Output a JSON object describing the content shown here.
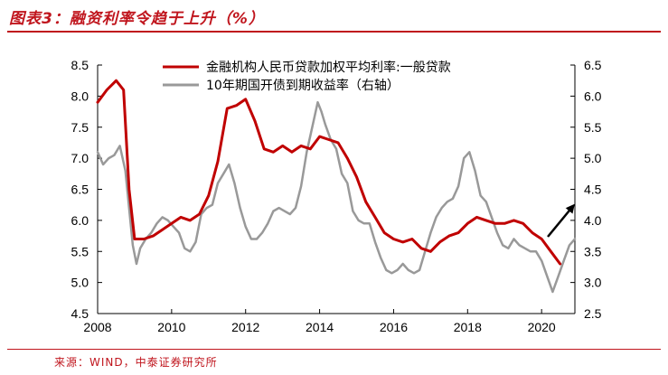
{
  "figure": {
    "title": "图表3：融资利率令趋于上升（%）",
    "source": "来源：WIND，中泰证券研究所"
  },
  "colors": {
    "accent": "#c0151d",
    "series_loan": "#c00000",
    "series_bond": "#999999",
    "arrow": "#000000"
  },
  "chart_data": {
    "type": "line",
    "title": "融资利率令趋于上升（%）",
    "xlabel": "",
    "ylabel": "",
    "y2label": "",
    "xlim": [
      2008,
      2020.9
    ],
    "ylim": [
      4.5,
      8.5
    ],
    "y2lim": [
      2.5,
      6.5
    ],
    "x_ticks": [
      "2008",
      "2010",
      "2012",
      "2014",
      "2016",
      "2018",
      "2020"
    ],
    "y_ticks": [
      "4.5",
      "5.0",
      "5.5",
      "6.0",
      "6.5",
      "7.0",
      "7.5",
      "8.0",
      "8.5"
    ],
    "y2_ticks": [
      "2.5",
      "3.0",
      "3.5",
      "4.0",
      "4.5",
      "5.0",
      "5.5",
      "6.0",
      "6.5"
    ],
    "legend_position": "top-center",
    "annotation": "upward arrow near 2020 indicating rising rates",
    "series": [
      {
        "name": "金融机构人民币贷款加权平均利率:一般贷款",
        "axis": "left",
        "color": "#c00000",
        "x": [
          2008.0,
          2008.25,
          2008.5,
          2008.7,
          2008.85,
          2009.0,
          2009.25,
          2009.5,
          2009.75,
          2010.0,
          2010.25,
          2010.5,
          2010.75,
          2011.0,
          2011.25,
          2011.5,
          2011.75,
          2012.0,
          2012.25,
          2012.5,
          2012.75,
          2013.0,
          2013.25,
          2013.5,
          2013.75,
          2014.0,
          2014.25,
          2014.5,
          2014.75,
          2015.0,
          2015.25,
          2015.5,
          2015.75,
          2016.0,
          2016.25,
          2016.5,
          2016.75,
          2017.0,
          2017.25,
          2017.5,
          2017.75,
          2018.0,
          2018.25,
          2018.5,
          2018.75,
          2019.0,
          2019.25,
          2019.5,
          2019.75,
          2020.0,
          2020.25,
          2020.5
        ],
        "values": [
          7.9,
          8.1,
          8.25,
          8.1,
          6.5,
          5.7,
          5.7,
          5.75,
          5.85,
          5.95,
          6.05,
          6.0,
          6.1,
          6.4,
          6.95,
          7.8,
          7.85,
          7.95,
          7.6,
          7.15,
          7.1,
          7.2,
          7.1,
          7.2,
          7.15,
          7.35,
          7.3,
          7.25,
          7.0,
          6.7,
          6.3,
          6.05,
          5.8,
          5.7,
          5.65,
          5.7,
          5.55,
          5.5,
          5.65,
          5.75,
          5.8,
          5.95,
          6.05,
          6.0,
          5.95,
          5.95,
          6.0,
          5.95,
          5.8,
          5.7,
          5.5,
          5.3
        ]
      },
      {
        "name": "10年期国开债到期收益率（右轴）",
        "axis": "right",
        "color": "#999999",
        "x": [
          2008.0,
          2008.15,
          2008.3,
          2008.45,
          2008.6,
          2008.75,
          2008.85,
          2008.95,
          2009.05,
          2009.15,
          2009.3,
          2009.45,
          2009.6,
          2009.75,
          2009.9,
          2010.05,
          2010.2,
          2010.35,
          2010.5,
          2010.65,
          2010.8,
          2010.95,
          2011.1,
          2011.25,
          2011.4,
          2011.55,
          2011.7,
          2011.85,
          2012.0,
          2012.15,
          2012.3,
          2012.45,
          2012.6,
          2012.75,
          2012.9,
          2013.05,
          2013.2,
          2013.35,
          2013.5,
          2013.65,
          2013.8,
          2013.95,
          2014.05,
          2014.15,
          2014.3,
          2014.45,
          2014.6,
          2014.75,
          2014.9,
          2015.05,
          2015.2,
          2015.35,
          2015.5,
          2015.65,
          2015.8,
          2015.95,
          2016.1,
          2016.25,
          2016.4,
          2016.55,
          2016.7,
          2016.85,
          2017.0,
          2017.15,
          2017.3,
          2017.45,
          2017.6,
          2017.75,
          2017.9,
          2018.05,
          2018.2,
          2018.35,
          2018.5,
          2018.65,
          2018.8,
          2018.95,
          2019.1,
          2019.25,
          2019.4,
          2019.55,
          2019.7,
          2019.85,
          2020.0,
          2020.15,
          2020.3,
          2020.45,
          2020.6,
          2020.75,
          2020.9
        ],
        "values": [
          5.1,
          4.9,
          5.0,
          5.05,
          5.2,
          4.8,
          4.2,
          3.6,
          3.3,
          3.55,
          3.7,
          3.8,
          3.95,
          4.05,
          4.0,
          3.9,
          3.8,
          3.55,
          3.5,
          3.65,
          4.1,
          4.2,
          4.25,
          4.6,
          4.75,
          4.9,
          4.6,
          4.2,
          3.9,
          3.7,
          3.7,
          3.8,
          3.95,
          4.15,
          4.2,
          4.15,
          4.1,
          4.2,
          4.55,
          5.1,
          5.5,
          5.9,
          5.75,
          5.55,
          5.3,
          5.15,
          4.75,
          4.6,
          4.15,
          4.0,
          3.95,
          3.95,
          3.65,
          3.4,
          3.2,
          3.15,
          3.2,
          3.3,
          3.2,
          3.15,
          3.2,
          3.5,
          3.8,
          4.05,
          4.2,
          4.3,
          4.35,
          4.55,
          5.0,
          5.1,
          4.8,
          4.4,
          4.3,
          4.05,
          3.8,
          3.6,
          3.55,
          3.7,
          3.6,
          3.55,
          3.5,
          3.5,
          3.35,
          3.1,
          2.85,
          3.1,
          3.35,
          3.6,
          3.7
        ]
      }
    ]
  }
}
